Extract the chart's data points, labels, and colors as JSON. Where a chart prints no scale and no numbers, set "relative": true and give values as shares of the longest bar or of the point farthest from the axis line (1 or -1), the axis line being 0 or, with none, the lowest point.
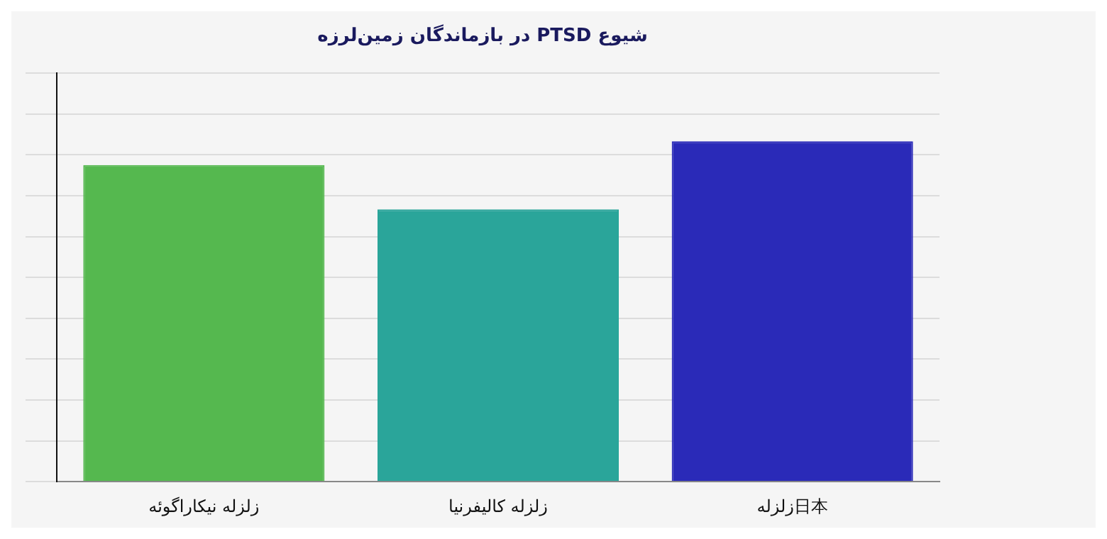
{
  "chart_data": {
    "type": "bar",
    "title": "در بازماندگان زمین‌لرزه PTSD شیوع",
    "categories": [
      "زلزله نیکاراگوئه",
      "زلزله کالیفرنیا",
      "زلزله日本"
    ],
    "values": [
      0.93,
      0.8,
      1
    ],
    "colors": [
      "#55b84f",
      "#2aa59a",
      "#2a2ab8"
    ],
    "relative": true,
    "grid": "y",
    "legend": false
  }
}
